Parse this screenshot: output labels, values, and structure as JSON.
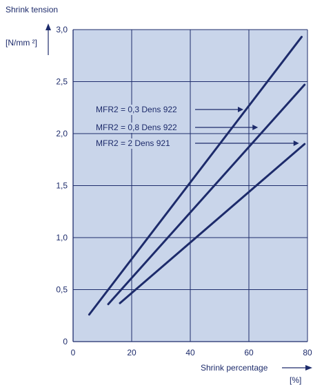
{
  "chart_data": {
    "type": "line",
    "title": "",
    "ylabel": "Shrink tension",
    "yunit": "[N/mm ²]",
    "xlabel": "Shrink percentage",
    "xunit": "[%]",
    "xlim": [
      0,
      80
    ],
    "ylim": [
      0,
      3.0
    ],
    "x_ticks": [
      0,
      20,
      40,
      60,
      80
    ],
    "x_tick_labels": [
      "0",
      "20",
      "40",
      "60",
      "80"
    ],
    "y_ticks": [
      0,
      0.5,
      1.0,
      1.5,
      2.0,
      2.5,
      3.0
    ],
    "y_tick_labels": [
      "0",
      "0,5",
      "1,0",
      "1,5",
      "2,0",
      "2,5",
      "3,0"
    ],
    "grid": true,
    "background": "#c9d5ea",
    "line_color": "#1d2b6b",
    "series": [
      {
        "label": "MFR2 = 0,3 Dens 922",
        "x": [
          5.5,
          78
        ],
        "y": [
          0.26,
          2.93
        ],
        "arrow_to_x": 60
      },
      {
        "label": "MFR2 = 0,8 Dens 922",
        "x": [
          12,
          79
        ],
        "y": [
          0.36,
          2.47
        ],
        "arrow_to_x": 65
      },
      {
        "label": "MFR2 = 2 Dens 921",
        "x": [
          16,
          79
        ],
        "y": [
          0.37,
          1.9
        ],
        "arrow_to_x": 79
      }
    ]
  }
}
